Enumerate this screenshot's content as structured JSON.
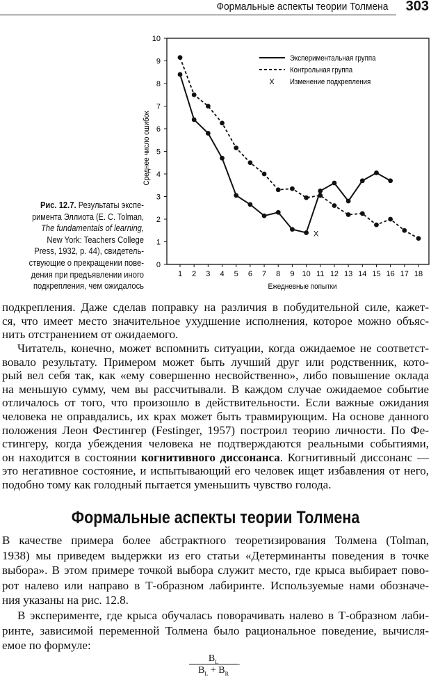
{
  "header": {
    "running_title": "Формальные аспекты теории Толмена",
    "page_number": "303"
  },
  "figure": {
    "caption_label": "Рис. 12.7.",
    "caption_lines": [
      "Результаты экспе-",
      "римента Эллиота (E. C. Tolman,",
      "The fundamentals of learning,",
      "New York: Teachers College",
      "Press, 1932, p. 44), свидетель-",
      "ствующие о прекращении пове-",
      "дения при предъявлении иного",
      "подкрепления, чем ожидалось"
    ]
  },
  "chart_data": {
    "type": "line",
    "xlabel": "Ежедневные попытки",
    "ylabel": "Среднее число ошибок",
    "xlim": [
      1,
      18
    ],
    "ylim": [
      0,
      10
    ],
    "x_ticks": [
      "1",
      "2",
      "3",
      "4",
      "5",
      "6",
      "7",
      "8",
      "9",
      "10",
      "11",
      "12",
      "13",
      "14",
      "15",
      "16",
      "17",
      "18"
    ],
    "y_ticks": [
      "0",
      "1",
      "2",
      "3",
      "4",
      "5",
      "6",
      "7",
      "8",
      "9",
      "10"
    ],
    "legend_position": "top-right",
    "series": [
      {
        "name": "Экспериментальная группа",
        "style": "solid",
        "x": [
          1,
          2,
          3,
          4,
          5,
          6,
          7,
          8,
          9,
          10,
          11,
          12,
          13,
          14,
          15,
          16
        ],
        "y": [
          8.4,
          6.4,
          5.8,
          4.7,
          3.05,
          2.65,
          2.15,
          2.3,
          1.55,
          1.4,
          3.25,
          3.6,
          2.8,
          3.7,
          4.05,
          3.7
        ]
      },
      {
        "name": "Контрольная группа",
        "style": "dashed",
        "x": [
          1,
          2,
          3,
          4,
          5,
          6,
          7,
          8,
          9,
          10,
          11,
          12,
          13,
          14,
          15,
          16,
          17,
          18
        ],
        "y": [
          9.15,
          7.5,
          7.0,
          6.25,
          5.15,
          4.5,
          4.0,
          3.3,
          3.35,
          2.95,
          3.05,
          2.6,
          2.2,
          2.25,
          1.75,
          2.0,
          1.5,
          1.15
        ]
      }
    ],
    "marker": {
      "name": "Изменение подкрепления",
      "symbol": "X",
      "x": 10.7,
      "y": 1.4
    }
  },
  "body": {
    "para1": [
      "подкрепления. Даже сделав поправку на различия в побудительной силе, кажет-",
      "ся, что имеет место значительное ухудшение исполнения, которое можно объяс-",
      "нить отстранением от ожидаемого."
    ],
    "para2": [
      "Читатель, конечно, может вспомнить ситуации, когда ожидаемое не соответст-",
      "вовало результату. Примером может быть лучший друг или родственник, кото-",
      "рый вел себя так, как «ему совершенно несвойственно», либо повышение оклада",
      "на меньшую сумму, чем вы рассчитывали. В каждом случае ожидаемое событие",
      "отличалось от того, что произошло в действительности. Если важные ожидания",
      "человека не оправдались, их крах может быть травмирующим. На основе данного",
      "положения Леон Фестингер (Festinger, 1957) построил теорию личности. По Фе-",
      "стингеру, когда убеждения человека не подтверждаются реальными событиями,"
    ],
    "para2_bold_line": {
      "before": "он находится в состоянии ",
      "bold": "когнитивного диссонанса",
      "after": ". Когнитивный диссонанс —"
    },
    "para2_end": [
      "это негативное состояние, и испытывающий его человек ищет избавления от него,",
      "подобно тому как голодный пытается уменьшить чувство голода."
    ],
    "section_heading": "Формальные аспекты теории Толмена",
    "para3": [
      "В качестве примера более абстрактного теоретизирования Толмена (Tolman,",
      "1938) мы приведем выдержки из его статьи «Детерминанты поведения в точке",
      "выбора». В этом примере точкой выбора служит место, где крыса выбирает пово-",
      "рот налево или направо в Т-образном лабиринте. Используемые нами обозначе-",
      "ния указаны на рис. 12.8."
    ],
    "para4": [
      "В эксперименте, где крыса обучалась поворачивать налево в Т-образном лаби-",
      "ринте, зависимой переменной Толмена было рациональное поведение, вычисля-",
      "емое по формуле:"
    ],
    "formula": {
      "num": "B",
      "num_sub": "L",
      "den_a": "B",
      "den_a_sub": "L",
      "plus": " + ",
      "den_b": "B",
      "den_b_sub": "R",
      "end": "."
    }
  }
}
